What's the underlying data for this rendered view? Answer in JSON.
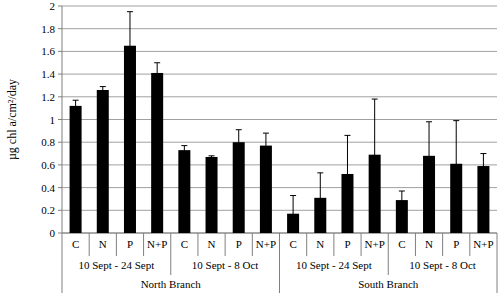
{
  "chart_data": {
    "type": "bar",
    "y_label": "µg chl a/cm²/day",
    "categories": [
      "C",
      "N",
      "P",
      "N+P",
      "C",
      "N",
      "P",
      "N+P",
      "C",
      "N",
      "P",
      "N+P",
      "C",
      "N",
      "P",
      "N+P"
    ],
    "values": [
      1.12,
      1.26,
      1.65,
      1.41,
      0.73,
      0.67,
      0.8,
      0.77,
      0.17,
      0.31,
      0.52,
      0.69,
      0.29,
      0.68,
      0.61,
      0.59
    ],
    "errors": [
      0.05,
      0.03,
      0.3,
      0.09,
      0.04,
      0.01,
      0.11,
      0.11,
      0.16,
      0.22,
      0.34,
      0.49,
      0.08,
      0.3,
      0.38,
      0.11
    ],
    "category_groups": [
      "10 Sept - 24 Sept",
      "10 Sept - 8 Oct",
      "10 Sept - 24 Sept",
      "10 Sept - 8 Oct"
    ],
    "category_supergroups": [
      "North Branch",
      "South Branch"
    ],
    "color": "#000000",
    "ylim": [
      0,
      2
    ],
    "yticks": [
      0,
      0.2,
      0.4,
      0.6,
      0.8,
      1,
      1.2,
      1.4,
      1.6,
      1.8,
      2
    ],
    "grid": true
  }
}
